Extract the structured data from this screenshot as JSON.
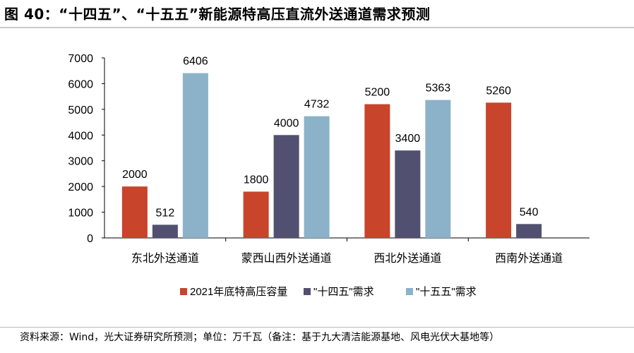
{
  "title": "图 40：“十四五”、“十五五”新能源特高压直流外送通道需求预测",
  "source": "资料来源：Wind，光大证券研究所预测；单位：万千瓦（备注：基于九大清洁能源基地、风电光伏大基地等）",
  "chart_data": {
    "type": "bar",
    "categories": [
      "东北外送通道",
      "蒙西山西外送通道",
      "西北外送通道",
      "西南外送通道"
    ],
    "series": [
      {
        "name": "2021年底特高压容量",
        "color": "#c8442a",
        "values": [
          2000,
          1800,
          5200,
          5260
        ]
      },
      {
        "name": "\"十四五\"需求",
        "color": "#525070",
        "values": [
          512,
          4000,
          3400,
          540
        ]
      },
      {
        "name": "\"十五五\"需求",
        "color": "#8bb2c9",
        "values": [
          6406,
          4732,
          5363,
          null
        ]
      }
    ],
    "ylim": [
      0,
      7000
    ],
    "yticks": [
      0,
      1000,
      2000,
      3000,
      4000,
      5000,
      6000,
      7000
    ],
    "legend_position": "bottom",
    "grid": false
  }
}
